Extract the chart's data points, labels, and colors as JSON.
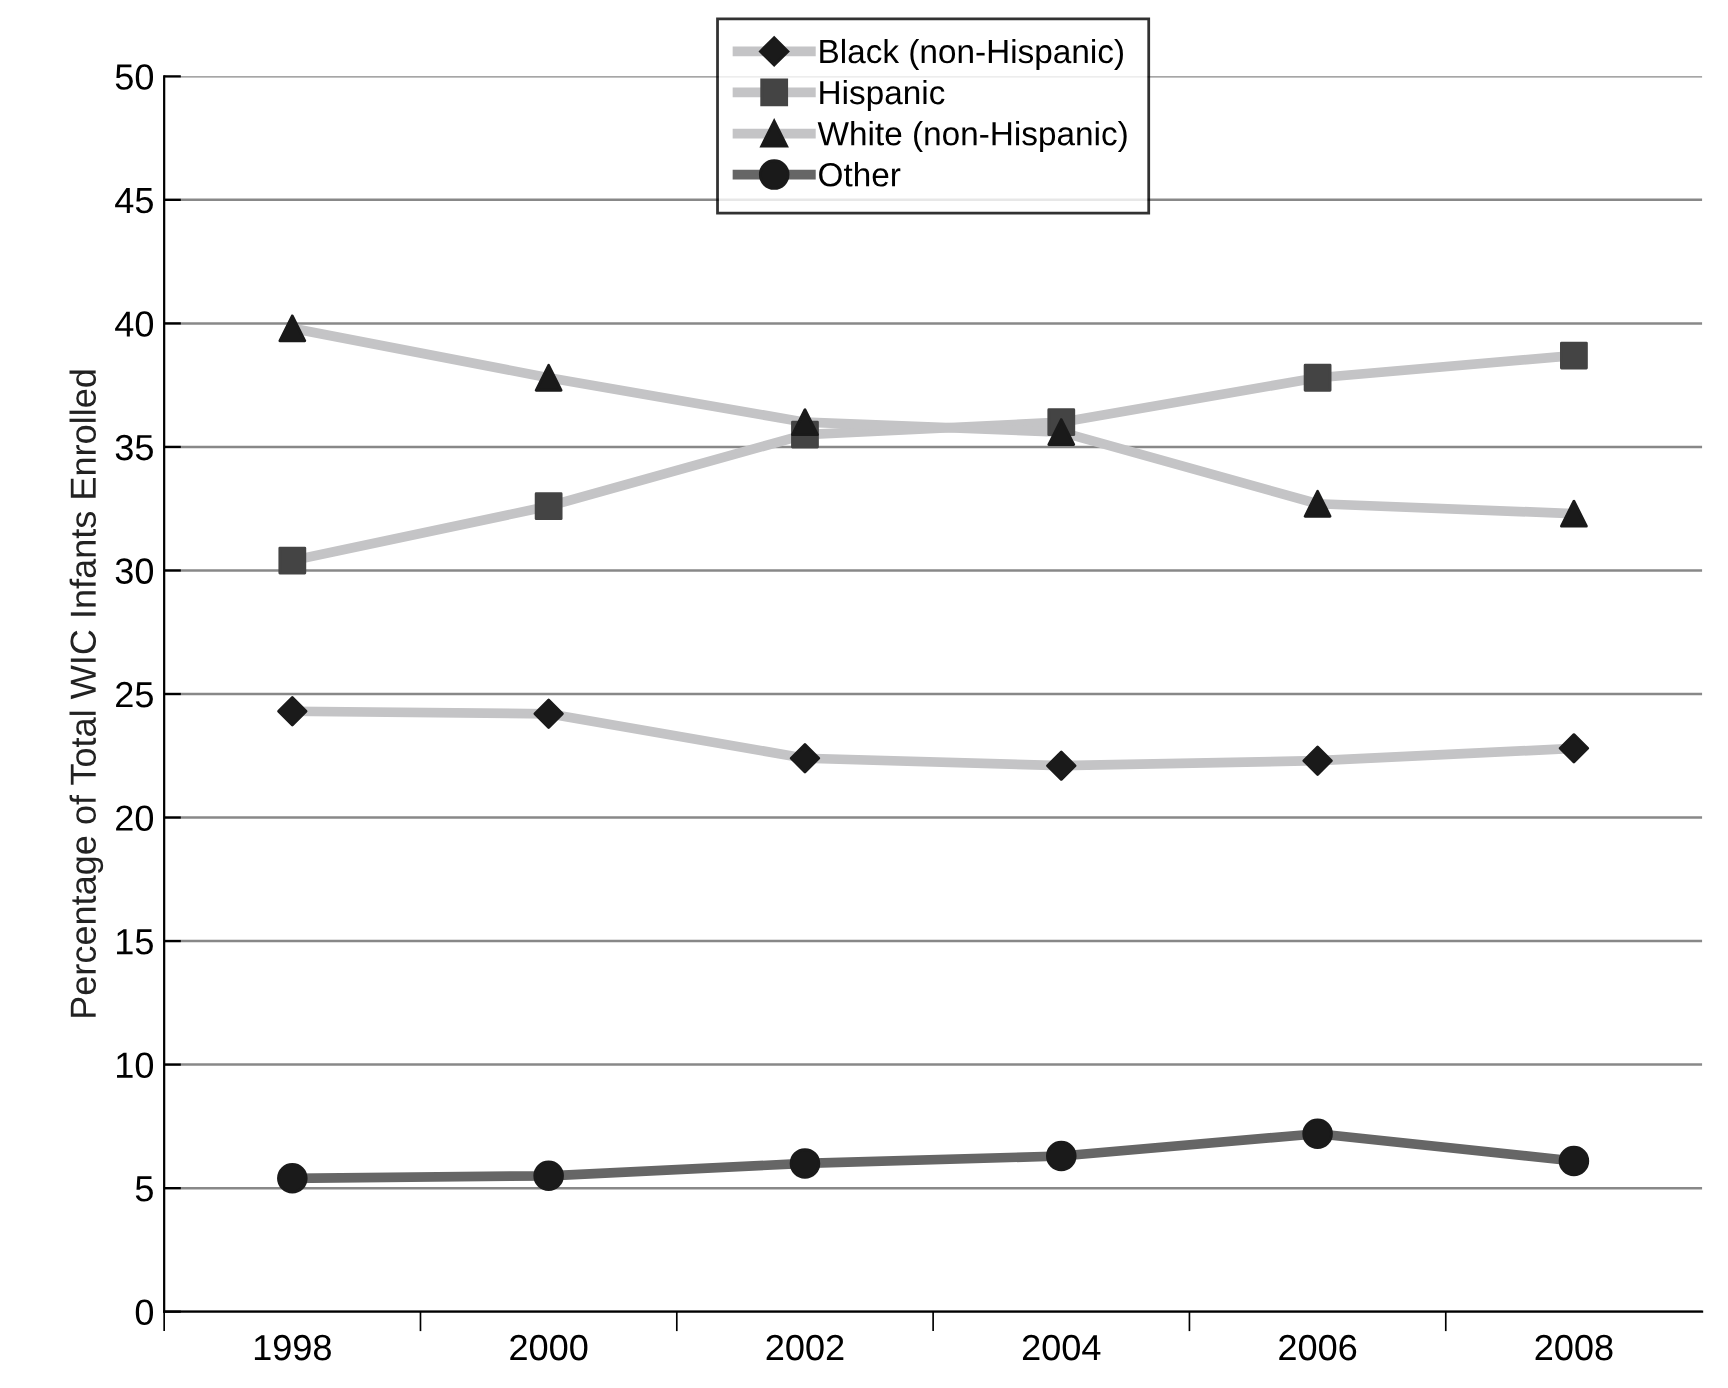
{
  "chart_data": {
    "type": "line",
    "ylabel": "Percentage of Total WIC Infants Enrolled",
    "categories": [
      "1998",
      "2000",
      "2002",
      "2004",
      "2006",
      "2008"
    ],
    "series": [
      {
        "name": "Black (non-Hispanic)",
        "color": "#c4c4c6",
        "colors": [
          "#1a1a1a",
          "#1a1a1a",
          "#1a1a1a",
          "#1a1a1a",
          "#1a1a1a",
          "#1a1a1a"
        ],
        "marker": "diamond",
        "values": [
          24.3,
          24.2,
          22.4,
          22.1,
          22.3,
          22.8
        ]
      },
      {
        "name": "Hispanic",
        "color": "#c4c4c6",
        "colors": [
          "#444444",
          "#444444",
          "#444444",
          "#444444",
          "#444444",
          "#444444"
        ],
        "marker": "square",
        "values": [
          30.4,
          32.6,
          35.5,
          36.0,
          37.8,
          38.7
        ]
      },
      {
        "name": "White (non-Hispanic)",
        "color": "#c4c4c6",
        "colors": [
          "#1a1a1a",
          "#1a1a1a",
          "#1a1a1a",
          "#1a1a1a",
          "#1a1a1a",
          "#1a1a1a"
        ],
        "marker": "triangle",
        "values": [
          39.8,
          37.8,
          36.0,
          35.6,
          32.7,
          32.3
        ]
      },
      {
        "name": "Other",
        "color": "#666666",
        "colors": [
          "#1a1a1a",
          "#1a1a1a",
          "#1a1a1a",
          "#1a1a1a",
          "#1a1a1a",
          "#1a1a1a"
        ],
        "marker": "circle",
        "values": [
          5.4,
          5.5,
          6.0,
          6.3,
          7.2,
          6.1
        ]
      }
    ],
    "ylim": [
      0,
      50
    ],
    "yticks": [
      0,
      5,
      10,
      15,
      20,
      25,
      30,
      35,
      40,
      45,
      50
    ],
    "grid": "y",
    "legend": "top",
    "line_style": "solid"
  }
}
